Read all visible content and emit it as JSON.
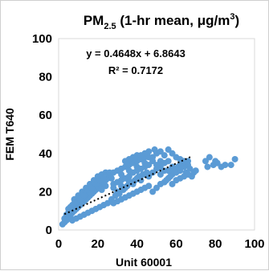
{
  "chart_data": {
    "type": "scatter",
    "title": {
      "main": "PM",
      "subscript": "2.5",
      "rest": " (1-hr mean, μg/m",
      "superscript": "3",
      "close": ")"
    },
    "xlabel": "Unit 60001",
    "ylabel": "FEM T640",
    "xlim": [
      0,
      100
    ],
    "ylim": [
      0,
      100
    ],
    "x_ticks": [
      0,
      20,
      40,
      60,
      80,
      100
    ],
    "y_ticks": [
      0,
      20,
      40,
      60,
      80,
      100
    ],
    "grid": false,
    "legend": "none",
    "marker_color": "#5b9bd5",
    "trendline": {
      "style": "dotted",
      "color": "#000000",
      "slope": 0.4648,
      "intercept": 6.8643,
      "x_range": [
        3,
        68
      ]
    },
    "annotations": {
      "equation": "y = 0.4648x + 6.8643",
      "r_squared": "R² = 0.7172"
    },
    "series": [
      {
        "points": [
          [
            2,
            3
          ],
          [
            3,
            4
          ],
          [
            4,
            5
          ],
          [
            5,
            6
          ],
          [
            6,
            7
          ],
          [
            3,
            6
          ],
          [
            4,
            8
          ],
          [
            5,
            9
          ],
          [
            6,
            10
          ],
          [
            7,
            9
          ],
          [
            8,
            10
          ],
          [
            9,
            11
          ],
          [
            10,
            12
          ],
          [
            11,
            13
          ],
          [
            12,
            14
          ],
          [
            13,
            15
          ],
          [
            14,
            16
          ],
          [
            15,
            17
          ],
          [
            16,
            18
          ],
          [
            17,
            19
          ],
          [
            18,
            20
          ],
          [
            19,
            21
          ],
          [
            20,
            22
          ],
          [
            21,
            23
          ],
          [
            22,
            24
          ],
          [
            23,
            25
          ],
          [
            24,
            26
          ],
          [
            25,
            27
          ],
          [
            26,
            28
          ],
          [
            27,
            27
          ],
          [
            8,
            16
          ],
          [
            10,
            18
          ],
          [
            12,
            20
          ],
          [
            14,
            22
          ],
          [
            16,
            24
          ],
          [
            18,
            26
          ],
          [
            20,
            28
          ],
          [
            22,
            29
          ],
          [
            24,
            30
          ],
          [
            26,
            30
          ],
          [
            7,
            5
          ],
          [
            9,
            6
          ],
          [
            11,
            7
          ],
          [
            13,
            8
          ],
          [
            15,
            9
          ],
          [
            17,
            10
          ],
          [
            19,
            11
          ],
          [
            21,
            12
          ],
          [
            23,
            13
          ],
          [
            25,
            14
          ],
          [
            6,
            12
          ],
          [
            8,
            14
          ],
          [
            10,
            15
          ],
          [
            12,
            17
          ],
          [
            14,
            19
          ],
          [
            16,
            20
          ],
          [
            18,
            21
          ],
          [
            20,
            23
          ],
          [
            22,
            21
          ],
          [
            24,
            23
          ],
          [
            28,
            24
          ],
          [
            30,
            25
          ],
          [
            32,
            26
          ],
          [
            34,
            27
          ],
          [
            36,
            28
          ],
          [
            38,
            30
          ],
          [
            40,
            31
          ],
          [
            42,
            32
          ],
          [
            44,
            33
          ],
          [
            46,
            34
          ],
          [
            28,
            14
          ],
          [
            30,
            15
          ],
          [
            32,
            16
          ],
          [
            34,
            17
          ],
          [
            36,
            18
          ],
          [
            38,
            19
          ],
          [
            40,
            20
          ],
          [
            42,
            21
          ],
          [
            44,
            22
          ],
          [
            46,
            23
          ],
          [
            28,
            30
          ],
          [
            30,
            31
          ],
          [
            32,
            32
          ],
          [
            34,
            33
          ],
          [
            36,
            34
          ],
          [
            38,
            35
          ],
          [
            40,
            36
          ],
          [
            42,
            37
          ],
          [
            44,
            38
          ],
          [
            46,
            38
          ],
          [
            30,
            20
          ],
          [
            34,
            22
          ],
          [
            38,
            24
          ],
          [
            42,
            26
          ],
          [
            46,
            28
          ],
          [
            48,
            30
          ],
          [
            50,
            32
          ],
          [
            52,
            33
          ],
          [
            54,
            35
          ],
          [
            56,
            36
          ],
          [
            48,
            20
          ],
          [
            50,
            22
          ],
          [
            52,
            24
          ],
          [
            54,
            25
          ],
          [
            56,
            27
          ],
          [
            58,
            29
          ],
          [
            60,
            30
          ],
          [
            62,
            31
          ],
          [
            64,
            33
          ],
          [
            66,
            34
          ],
          [
            48,
            38
          ],
          [
            50,
            40
          ],
          [
            52,
            41
          ],
          [
            54,
            39
          ],
          [
            56,
            42
          ],
          [
            58,
            40
          ],
          [
            60,
            38
          ],
          [
            62,
            37
          ],
          [
            64,
            36
          ],
          [
            66,
            36
          ],
          [
            55,
            26
          ],
          [
            57,
            28
          ],
          [
            59,
            31
          ],
          [
            61,
            33
          ],
          [
            63,
            35
          ],
          [
            65,
            30
          ],
          [
            67,
            32
          ],
          [
            68,
            28
          ],
          [
            69,
            30
          ],
          [
            70,
            31
          ],
          [
            44,
            40
          ],
          [
            46,
            41
          ],
          [
            49,
            42
          ],
          [
            52,
            36
          ],
          [
            58,
            24
          ],
          [
            60,
            26
          ],
          [
            62,
            27
          ],
          [
            64,
            28
          ],
          [
            66,
            29
          ],
          [
            52,
            29
          ],
          [
            5,
            11
          ],
          [
            7,
            13
          ],
          [
            9,
            14
          ],
          [
            11,
            16
          ],
          [
            13,
            18
          ],
          [
            15,
            21
          ],
          [
            17,
            22
          ],
          [
            19,
            24
          ],
          [
            21,
            26
          ],
          [
            23,
            27
          ],
          [
            27,
            16
          ],
          [
            29,
            18
          ],
          [
            31,
            19
          ],
          [
            33,
            21
          ],
          [
            35,
            23
          ],
          [
            37,
            25
          ],
          [
            39,
            26
          ],
          [
            41,
            28
          ],
          [
            43,
            29
          ],
          [
            45,
            30
          ],
          [
            34,
            36
          ],
          [
            36,
            37
          ],
          [
            38,
            38
          ],
          [
            40,
            39
          ],
          [
            42,
            39
          ],
          [
            32,
            29
          ],
          [
            36,
            31
          ],
          [
            40,
            33
          ],
          [
            44,
            35
          ],
          [
            48,
            36
          ],
          [
            28,
            22
          ],
          [
            32,
            23
          ],
          [
            36,
            25
          ],
          [
            40,
            27
          ],
          [
            44,
            29
          ],
          [
            50,
            34
          ],
          [
            54,
            31
          ],
          [
            58,
            33
          ],
          [
            62,
            34
          ],
          [
            56,
            31
          ],
          [
            75,
            36
          ],
          [
            76,
            33
          ],
          [
            77,
            38
          ],
          [
            79,
            34
          ],
          [
            81,
            35
          ],
          [
            83,
            33
          ],
          [
            85,
            34
          ],
          [
            88,
            34
          ],
          [
            90,
            37
          ],
          [
            80,
            36
          ]
        ]
      }
    ]
  }
}
